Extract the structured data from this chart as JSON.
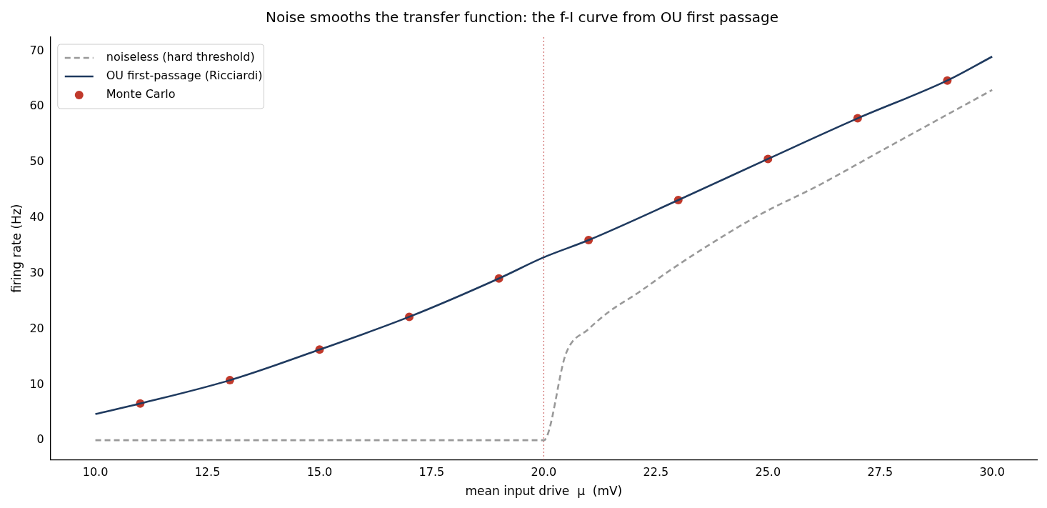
{
  "chart_data": {
    "type": "line",
    "title": "Noise smooths the transfer function: the f-I curve from OU first passage",
    "xlabel": "mean input drive  μ  (mV)",
    "ylabel": "firing rate (Hz)",
    "xlim": [
      9,
      31
    ],
    "ylim": [
      -3.5,
      72.5
    ],
    "xticks": [
      {
        "value": 10,
        "label": "10.0"
      },
      {
        "value": 12.5,
        "label": "12.5"
      },
      {
        "value": 15,
        "label": "15.0"
      },
      {
        "value": 17.5,
        "label": "17.5"
      },
      {
        "value": 20,
        "label": "20.0"
      },
      {
        "value": 22.5,
        "label": "22.5"
      },
      {
        "value": 25,
        "label": "25.0"
      },
      {
        "value": 27.5,
        "label": "27.5"
      },
      {
        "value": 30,
        "label": "30.0"
      }
    ],
    "yticks": [
      0,
      10,
      20,
      30,
      40,
      50,
      60,
      70
    ],
    "grid": false,
    "legend": "top left",
    "ref_lines": [
      {
        "axis": "x",
        "value": 20,
        "color": "#d07070",
        "line_style": "dotted"
      }
    ],
    "series": [
      {
        "name": "noiseless (hard threshold)",
        "color": "#999999",
        "line_style": "dashed",
        "marker": "none",
        "x": [
          10,
          20,
          20.5,
          21,
          21.47,
          22.1,
          22.84,
          23.64,
          24.8,
          26.12,
          27.58,
          29.05,
          30
        ],
        "values": [
          0,
          0,
          15.7,
          20.0,
          23.2,
          26.5,
          30.7,
          34.9,
          40.5,
          45.8,
          52.3,
          58.8,
          63.0
        ]
      },
      {
        "name": "OU first-passage (Ricciardi)",
        "color": "#1f3a5f",
        "line_style": "solid",
        "marker": "none",
        "x": [
          10,
          11,
          13,
          15,
          17,
          19,
          20,
          21,
          23,
          25,
          27,
          29,
          30
        ],
        "values": [
          4.7,
          6.6,
          10.8,
          16.3,
          22.2,
          29.1,
          32.9,
          36.0,
          43.2,
          50.6,
          57.9,
          64.7,
          69.0
        ]
      },
      {
        "name": "Monte Carlo",
        "type": "scatter",
        "color": "#c0392b",
        "marker": "circle",
        "x": [
          11,
          13,
          15,
          17,
          19,
          21,
          23,
          25,
          27,
          29
        ],
        "values": [
          6.6,
          10.8,
          16.3,
          22.2,
          29.1,
          36.0,
          43.2,
          50.6,
          57.9,
          64.7
        ]
      }
    ]
  }
}
